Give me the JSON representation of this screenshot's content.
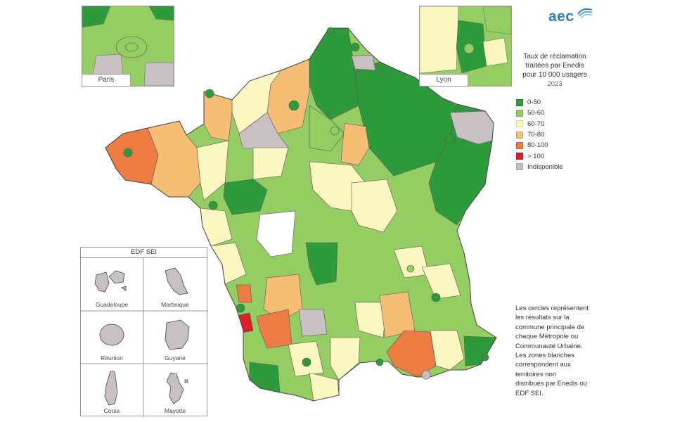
{
  "brand": {
    "name": "aec"
  },
  "colors": {
    "c0_50": "#2d9a3c",
    "c50_60": "#94cd62",
    "c60_70": "#fcf6c0",
    "c70_80": "#f6bd74",
    "c80_100": "#ee7b42",
    "c100": "#dd1f26",
    "na": "#c9c0c3",
    "white": "#ffffff"
  },
  "legend": {
    "title_lines": [
      "Taux de réclamation",
      "traitées par Enedis",
      "pour 10 000 usagers"
    ],
    "year": "2023",
    "items": [
      {
        "label": "0-50",
        "color": "#2d9a3c"
      },
      {
        "label": "50-60",
        "color": "#94cd62"
      },
      {
        "label": "60-70",
        "color": "#fcf6c0"
      },
      {
        "label": "70-80",
        "color": "#f6bd74"
      },
      {
        "label": "80-100",
        "color": "#ee7b42"
      },
      {
        "label": "> 100",
        "color": "#dd1f26"
      },
      {
        "label": "Indisponible",
        "color": "#c9c0c3"
      }
    ]
  },
  "insets": {
    "paris": "Paris",
    "lyon": "Lyon"
  },
  "edf_sei": {
    "title": "EDF SEI",
    "territories": [
      "Guadeloupe",
      "Martinique",
      "Réunion",
      "Guyane",
      "Corse",
      "Mayotte"
    ]
  },
  "note_lines": [
    "Les cercles représentent",
    "les résultats sur la",
    "commune principale de",
    "chaque Métropole ou",
    "Communauté Urbaine.",
    "Les zones blanches",
    "correspondent aux",
    "territoires non",
    "distribués par Enedis ou",
    "EDF SEI."
  ]
}
